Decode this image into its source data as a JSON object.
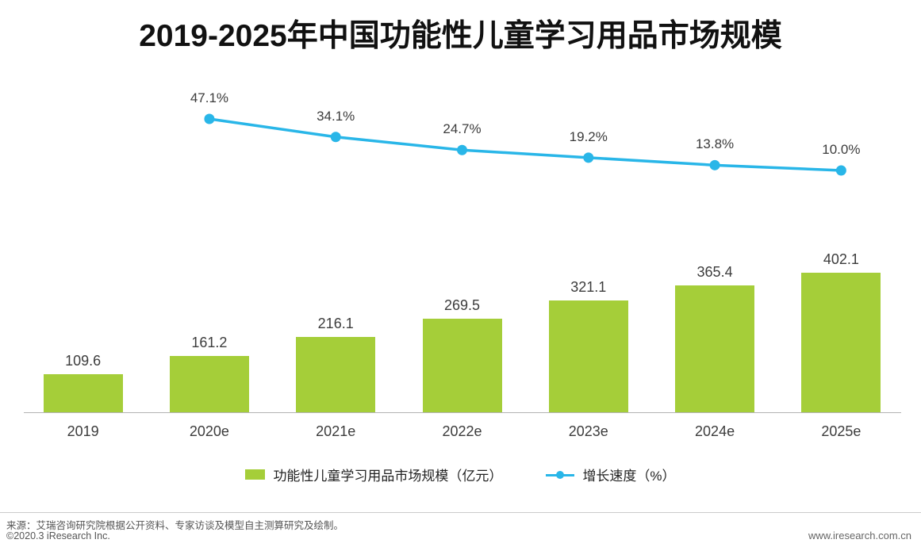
{
  "title": "2019-2025年中国功能性儿童学习用品市场规模",
  "chart_data": {
    "type": "bar+line",
    "title": "2019-2025年中国功能性儿童学习用品市场规模",
    "categories": [
      "2019",
      "2020e",
      "2021e",
      "2022e",
      "2023e",
      "2024e",
      "2025e"
    ],
    "series": [
      {
        "name": "功能性儿童学习用品市场规模（亿元）",
        "type": "bar",
        "color": "#a5ce39",
        "unit": "亿元",
        "values": [
          109.6,
          161.2,
          216.1,
          269.5,
          321.1,
          365.4,
          402.1
        ],
        "value_labels": [
          "109.6",
          "161.2",
          "216.1",
          "269.5",
          "321.1",
          "365.4",
          "402.1"
        ]
      },
      {
        "name": "增长速度（%）",
        "type": "line",
        "color": "#29b6e8",
        "unit": "%",
        "values": [
          null,
          47.1,
          34.1,
          24.7,
          19.2,
          13.8,
          10.0
        ],
        "value_labels": [
          "",
          "47.1%",
          "34.1%",
          "24.7%",
          "19.2%",
          "13.8%",
          "10.0%"
        ]
      }
    ],
    "grid": false,
    "legend_position": "bottom",
    "ylim_bar": [
      0,
      450
    ],
    "ylim_line": [
      0,
      60
    ]
  },
  "legend": {
    "bar_label": "功能性儿童学习用品市场规模（亿元）",
    "line_label": "增长速度（%）"
  },
  "footer": {
    "source": "来源：艾瑞咨询研究院根据公开资料、专家访谈及模型自主测算研究及绘制。",
    "copyright": "©2020.3 iResearch Inc.",
    "website": "www.iresearch.com.cn"
  }
}
